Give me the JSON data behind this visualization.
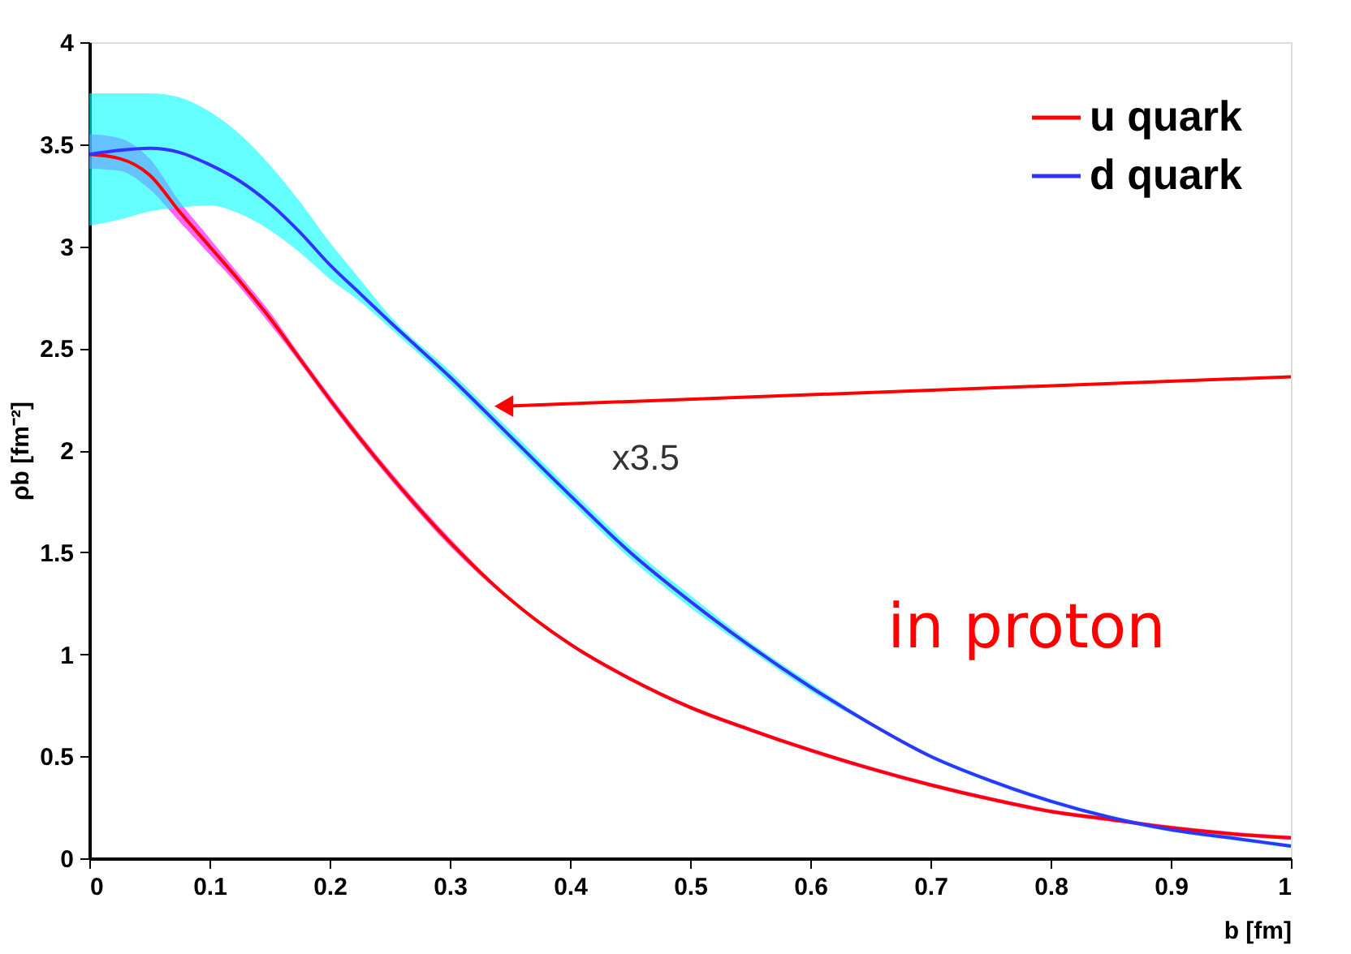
{
  "chart_data": {
    "type": "line",
    "xlabel": "b [fm]",
    "ylabel": "ρb [fm⁻²]",
    "x": [
      0,
      0.025,
      0.05,
      0.075,
      0.1,
      0.125,
      0.15,
      0.175,
      0.2,
      0.225,
      0.25,
      0.3,
      0.35,
      0.4,
      0.45,
      0.5,
      0.55,
      0.6,
      0.65,
      0.7,
      0.75,
      0.8,
      0.85,
      0.9,
      0.95,
      1.0
    ],
    "series": [
      {
        "name": "u quark",
        "color": "#ff0000",
        "values": [
          3.45,
          3.43,
          3.35,
          3.17,
          3.0,
          2.83,
          2.65,
          2.45,
          2.25,
          2.06,
          1.88,
          1.55,
          1.27,
          1.05,
          0.88,
          0.74,
          0.63,
          0.53,
          0.44,
          0.36,
          0.29,
          0.23,
          0.19,
          0.15,
          0.12,
          0.1
        ],
        "lower": [
          3.38,
          3.37,
          3.28,
          3.12,
          2.96,
          2.8,
          2.62,
          2.43,
          2.23,
          2.04,
          1.86,
          1.53,
          1.26,
          1.04,
          0.87,
          0.73,
          0.62,
          0.52,
          0.43,
          0.35,
          0.28,
          0.22,
          0.18,
          0.14,
          0.11,
          0.09
        ],
        "upper": [
          3.55,
          3.53,
          3.43,
          3.22,
          3.04,
          2.86,
          2.68,
          2.47,
          2.27,
          2.08,
          1.9,
          1.57,
          1.28,
          1.06,
          0.89,
          0.75,
          0.64,
          0.54,
          0.45,
          0.37,
          0.3,
          0.24,
          0.2,
          0.16,
          0.13,
          0.11
        ]
      },
      {
        "name": "d quark",
        "color": "#3333ff",
        "values": [
          3.45,
          3.47,
          3.48,
          3.46,
          3.4,
          3.32,
          3.21,
          3.07,
          2.91,
          2.77,
          2.63,
          2.36,
          2.07,
          1.78,
          1.5,
          1.26,
          1.04,
          0.84,
          0.66,
          0.5,
          0.38,
          0.28,
          0.2,
          0.14,
          0.1,
          0.06
        ],
        "lower": [
          3.1,
          3.13,
          3.17,
          3.19,
          3.2,
          3.16,
          3.08,
          2.97,
          2.84,
          2.73,
          2.6,
          2.33,
          2.04,
          1.75,
          1.47,
          1.23,
          1.02,
          0.82,
          0.65,
          0.49,
          0.37,
          0.27,
          0.19,
          0.13,
          0.09,
          0.05
        ],
        "upper": [
          3.75,
          3.75,
          3.75,
          3.73,
          3.66,
          3.55,
          3.4,
          3.22,
          3.02,
          2.84,
          2.66,
          2.39,
          2.1,
          1.81,
          1.53,
          1.29,
          1.06,
          0.86,
          0.67,
          0.51,
          0.39,
          0.29,
          0.21,
          0.15,
          0.11,
          0.07
        ]
      }
    ],
    "xlim": [
      0,
      1
    ],
    "xticks": [
      0,
      0.1,
      0.2,
      0.3,
      0.4,
      0.5,
      0.6,
      0.7,
      0.8,
      0.9,
      1
    ],
    "ylim": [
      0,
      4
    ],
    "yticks": [
      0,
      0.5,
      1,
      1.5,
      2,
      2.5,
      3,
      3.5,
      4
    ],
    "grid": false,
    "legend": "top right",
    "marker": "none",
    "line_style": "solid",
    "annotations": [
      "x3.5",
      "in proton"
    ]
  }
}
